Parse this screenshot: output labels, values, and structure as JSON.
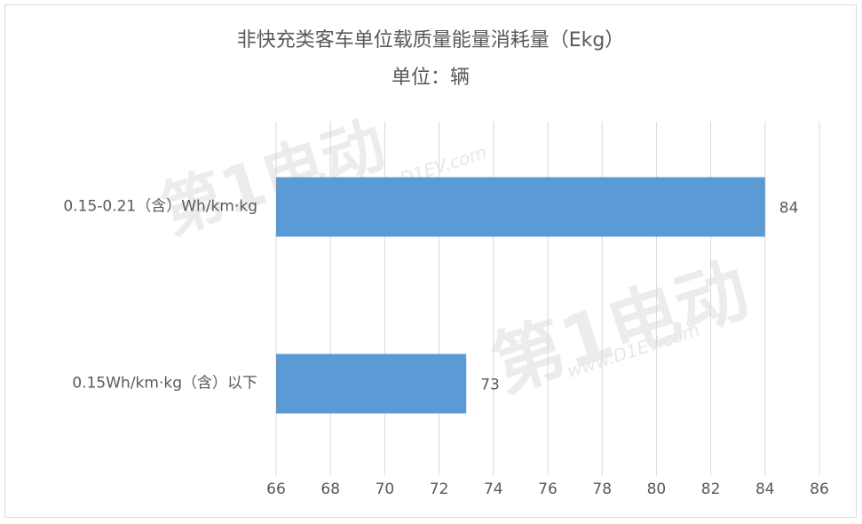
{
  "chart_data": {
    "type": "bar",
    "orientation": "horizontal",
    "title": "非快充类客车单位载质量能量消耗量（Ekg）",
    "subtitle": "单位：辆",
    "categories": [
      "0.15-0.21（含）Wh/km·kg",
      "0.15Wh/km·kg（含）以下"
    ],
    "values": [
      84,
      73
    ],
    "color": "#5b9bd5",
    "xlim": [
      66,
      86
    ],
    "xticks": [
      66,
      68,
      70,
      72,
      74,
      76,
      78,
      80,
      82,
      84,
      86
    ],
    "grid": true,
    "watermark": [
      "第1电动",
      "www.D1EV.com"
    ]
  }
}
